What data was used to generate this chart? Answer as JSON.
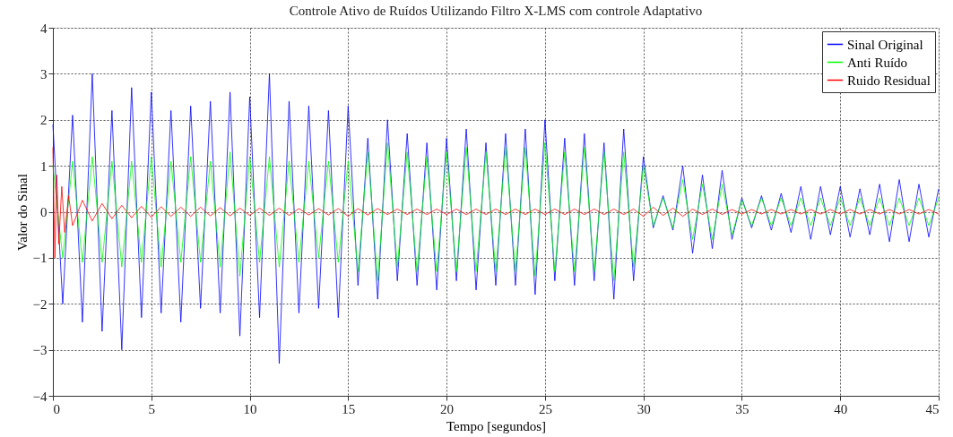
{
  "chart_data": {
    "type": "line",
    "title": "Controle Ativo de Ruídos Utilizando Filtro X-LMS com controle Adaptativo",
    "xlabel": "Tempo [segundos]",
    "ylabel": "Valor do Sinal",
    "x": [
      0,
      0.5,
      1,
      1.5,
      2,
      2.5,
      3,
      3.5,
      4,
      4.5,
      5,
      5.5,
      6,
      6.5,
      7,
      7.5,
      8,
      8.5,
      9,
      9.5,
      10,
      10.5,
      11,
      11.5,
      12,
      12.5,
      13,
      13.5,
      14,
      14.5,
      15,
      15.5,
      16,
      16.5,
      17,
      17.5,
      18,
      18.5,
      19,
      19.5,
      20,
      20.5,
      21,
      21.5,
      22,
      22.5,
      23,
      23.5,
      24,
      24.5,
      25,
      25.5,
      26,
      26.5,
      27,
      27.5,
      28,
      28.5,
      29,
      29.5,
      30,
      30.5,
      31,
      31.5,
      32,
      32.5,
      33,
      33.5,
      34,
      34.5,
      35,
      35.5,
      36,
      36.5,
      37,
      37.5,
      38,
      38.5,
      39,
      39.5,
      40,
      40.5,
      41,
      41.5,
      42,
      42.5,
      43,
      43.5,
      44,
      44.5,
      45
    ],
    "series": [
      {
        "name": "Sinal Original",
        "color": "#0000ff",
        "values": [
          1.9,
          -2.0,
          2.1,
          -2.4,
          3.0,
          -2.6,
          2.2,
          -3.0,
          2.7,
          -2.3,
          2.6,
          -2.2,
          2.2,
          -2.4,
          2.3,
          -2.1,
          2.4,
          -2.2,
          2.6,
          -2.7,
          2.5,
          -2.3,
          3.0,
          -3.3,
          2.4,
          -2.2,
          2.3,
          -2.1,
          2.2,
          -2.3,
          2.3,
          -1.6,
          1.6,
          -1.9,
          2.0,
          -1.5,
          1.7,
          -1.6,
          1.5,
          -1.7,
          1.6,
          -1.5,
          1.8,
          -1.7,
          1.5,
          -1.6,
          1.7,
          -1.6,
          1.8,
          -1.8,
          2.0,
          -1.5,
          1.6,
          -1.6,
          1.7,
          -1.5,
          1.5,
          -1.9,
          1.8,
          -1.5,
          1.2,
          -0.35,
          0.35,
          -0.4,
          1.0,
          -0.9,
          0.8,
          -0.8,
          0.9,
          -0.6,
          0.3,
          -0.35,
          0.35,
          -0.4,
          0.4,
          -0.45,
          0.55,
          -0.6,
          0.55,
          -0.5,
          0.55,
          -0.55,
          0.5,
          -0.5,
          0.6,
          -0.65,
          0.7,
          -0.65,
          0.6,
          -0.55,
          0.5
        ]
      },
      {
        "name": "Anti Ruído",
        "color": "#00ff00",
        "values": [
          1.0,
          -1.0,
          1.1,
          -1.1,
          1.2,
          -1.1,
          1.1,
          -1.2,
          1.1,
          -1.1,
          1.2,
          -1.2,
          1.1,
          -1.1,
          1.2,
          -1.1,
          1.1,
          -1.2,
          1.3,
          -1.4,
          1.2,
          -1.1,
          1.2,
          -1.2,
          1.1,
          -1.1,
          1.1,
          -1.0,
          1.1,
          -1.1,
          1.1,
          -1.3,
          1.3,
          -1.5,
          1.5,
          -1.2,
          1.3,
          -1.3,
          1.2,
          -1.3,
          1.3,
          -1.3,
          1.4,
          -1.3,
          1.3,
          -1.3,
          1.4,
          -1.3,
          1.4,
          -1.4,
          1.5,
          -1.3,
          1.3,
          -1.3,
          1.4,
          -1.3,
          1.3,
          -1.5,
          1.3,
          -1.2,
          1.0,
          -0.3,
          0.3,
          -0.35,
          0.7,
          -0.6,
          0.6,
          -0.6,
          0.6,
          -0.5,
          0.25,
          -0.3,
          0.3,
          -0.3,
          0.3,
          -0.3,
          0.3,
          -0.3,
          0.3,
          -0.3,
          0.3,
          -0.3,
          0.3,
          -0.3,
          0.3,
          -0.3,
          0.3,
          -0.3,
          0.3,
          -0.3,
          0.3
        ]
      },
      {
        "name": "Ruido Residual",
        "color": "#ff0000",
        "x": [
          0,
          0.1,
          0.2,
          0.3,
          0.45,
          0.6,
          0.8,
          1.0,
          1.5,
          2,
          2.5,
          3,
          3.5,
          4,
          4.5,
          5,
          5.5,
          6,
          6.5,
          7,
          7.5,
          8,
          8.5,
          9,
          9.5,
          10,
          10.5,
          11,
          11.5,
          12,
          12.5,
          13,
          13.5,
          14,
          14.5,
          15,
          15.5,
          16,
          16.5,
          17,
          17.5,
          18,
          18.5,
          19,
          19.5,
          20,
          20.5,
          21,
          21.5,
          22,
          22.5,
          23,
          23.5,
          24,
          24.5,
          25,
          25.5,
          26,
          26.5,
          27,
          27.5,
          28,
          28.5,
          29,
          29.5,
          30,
          30.5,
          31,
          31.5,
          32,
          32.5,
          33,
          33.5,
          34,
          34.5,
          35,
          35.5,
          36,
          36.5,
          37,
          37.5,
          38,
          38.5,
          39,
          39.5,
          40,
          40.5,
          41,
          41.5,
          42,
          42.5,
          43,
          43.5,
          44,
          44.5,
          45
        ],
        "values": [
          1.4,
          -1.0,
          0.8,
          -0.7,
          0.55,
          -0.45,
          0.35,
          -0.3,
          0.25,
          -0.2,
          0.18,
          -0.15,
          0.14,
          -0.13,
          0.12,
          -0.12,
          0.11,
          -0.1,
          0.1,
          -0.1,
          0.1,
          -0.09,
          0.09,
          -0.09,
          0.08,
          -0.08,
          0.08,
          -0.08,
          0.08,
          -0.08,
          0.07,
          -0.07,
          0.07,
          -0.07,
          0.07,
          -0.1,
          0.07,
          -0.07,
          0.07,
          -0.06,
          0.06,
          -0.06,
          0.06,
          -0.06,
          0.06,
          -0.06,
          0.06,
          -0.06,
          0.06,
          -0.06,
          0.06,
          -0.06,
          0.06,
          -0.06,
          0.06,
          -0.06,
          0.06,
          -0.06,
          0.06,
          -0.06,
          0.06,
          -0.06,
          0.06,
          -0.06,
          0.06,
          -0.1,
          0.1,
          -0.08,
          0.08,
          -0.1,
          0.06,
          -0.06,
          0.06,
          -0.06,
          0.05,
          -0.05,
          0.05,
          -0.05,
          0.05,
          -0.05,
          0.05,
          -0.05,
          0.05,
          -0.05,
          0.05,
          -0.05,
          0.05,
          -0.05,
          0.05,
          -0.05,
          0.05,
          -0.05,
          0.05,
          -0.05,
          0.05,
          -0.05
        ]
      }
    ],
    "xlim": [
      0,
      45
    ],
    "xticks": [
      0,
      5,
      10,
      15,
      20,
      25,
      30,
      35,
      40,
      45
    ],
    "ylim": [
      -4,
      4
    ],
    "yticks": [
      -4,
      -3,
      -2,
      -1,
      0,
      1,
      2,
      3,
      4
    ],
    "grid": true,
    "legend": "top right",
    "marker": "none",
    "line_style": "solid"
  }
}
